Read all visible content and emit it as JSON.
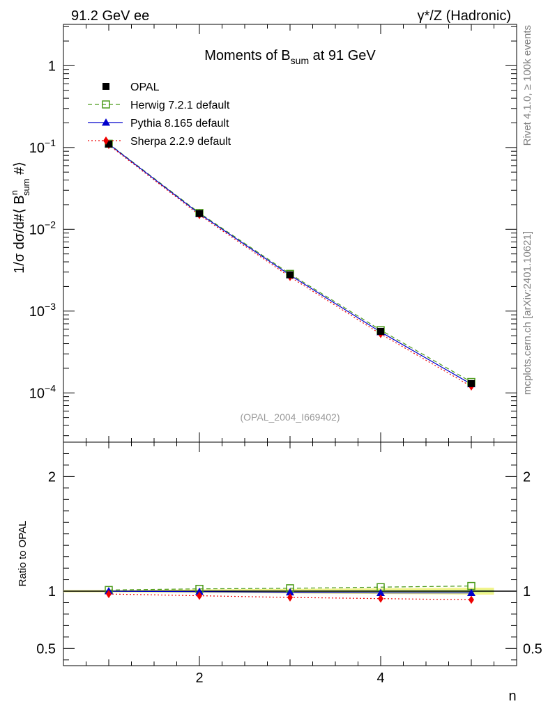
{
  "header": {
    "left": "91.2 GeV ee",
    "right": "γ*/Z (Hadronic)"
  },
  "side_labels": {
    "rivet": "Rivet 4.1.0, ≥ 100k events",
    "mcplots": "mcplots.cern.ch [arXiv:2401.10621]"
  },
  "chart_data": {
    "type": "line",
    "title": "Moments of B_sum at 91 GeV",
    "title_main": "Moments of B",
    "title_sub": "sum",
    "title_tail": " at 91 GeV",
    "watermark": "(OPAL_2004_I669402)",
    "ylabel": "1/σ  dσ/d#⟨ B^n_sum #⟩",
    "ylabel_prefix": "1/σ  dσ/d#⟨ B",
    "ylabel_sup": "n",
    "ylabel_sub": "sum",
    "ylabel_suffix": " #⟩",
    "xlabel": "n",
    "xlim": [
      0.5,
      5.5
    ],
    "ylim": [
      2.5e-05,
      3.2
    ],
    "yscale": "log",
    "x_ticks": [
      {
        "v": 2,
        "label": "2"
      },
      {
        "v": 4,
        "label": "4"
      }
    ],
    "y_ticks": [
      {
        "v": 1,
        "base": "1",
        "exp": ""
      },
      {
        "v": 0.1,
        "base": "10",
        "exp": "−1"
      },
      {
        "v": 0.01,
        "base": "10",
        "exp": "−2"
      },
      {
        "v": 0.001,
        "base": "10",
        "exp": "−3"
      },
      {
        "v": 0.0001,
        "base": "10",
        "exp": "−4"
      }
    ],
    "x": [
      1,
      2,
      3,
      4,
      5
    ],
    "series": [
      {
        "name": "OPAL",
        "role": "data",
        "color": "#000000",
        "marker": "square",
        "values": [
          0.1102,
          0.01555,
          0.00278,
          0.000565,
          0.00013
        ]
      },
      {
        "name": "Herwig 7.2.1 default",
        "color": "#4b9a1a",
        "marker": "open-square",
        "dash": "6,4",
        "values": [
          0.1112,
          0.01585,
          0.00285,
          0.000585,
          0.000136
        ]
      },
      {
        "name": "Pythia 8.165 default",
        "color": "#0000cc",
        "marker": "triangle",
        "dash": "",
        "values": [
          0.1101,
          0.01548,
          0.00275,
          0.000555,
          0.000128
        ]
      },
      {
        "name": "Sherpa 2.2.9 default",
        "color": "#ee0000",
        "marker": "diamond",
        "dash": "2,3",
        "values": [
          0.1075,
          0.01495,
          0.00262,
          0.000525,
          0.00012
        ]
      }
    ],
    "legend_position": "top-left",
    "ratio": {
      "ylabel": "Ratio to OPAL",
      "ylim": [
        0.35,
        2.3
      ],
      "y_ticks": [
        {
          "v": 0.5,
          "label": "0.5"
        },
        {
          "v": 1,
          "label": "1"
        },
        {
          "v": 2,
          "label": "2"
        }
      ],
      "band_color_outer": "#f2f48c",
      "band_color_inner": "#c8ef86",
      "band_outer_halfwidth": [
        0.01,
        0.015,
        0.02,
        0.025,
        0.03
      ],
      "band_inner_halfwidth": [
        0.004,
        0.006,
        0.008,
        0.01,
        0.012
      ],
      "series": [
        {
          "name": "Herwig 7.2.1 default",
          "values": [
            1.01,
            1.02,
            1.025,
            1.035,
            1.045
          ]
        },
        {
          "name": "Pythia 8.165 default",
          "values": [
            1.0,
            0.995,
            0.99,
            0.985,
            0.985
          ]
        },
        {
          "name": "Sherpa 2.2.9 default",
          "values": [
            0.975,
            0.96,
            0.945,
            0.935,
            0.925
          ]
        }
      ]
    }
  }
}
